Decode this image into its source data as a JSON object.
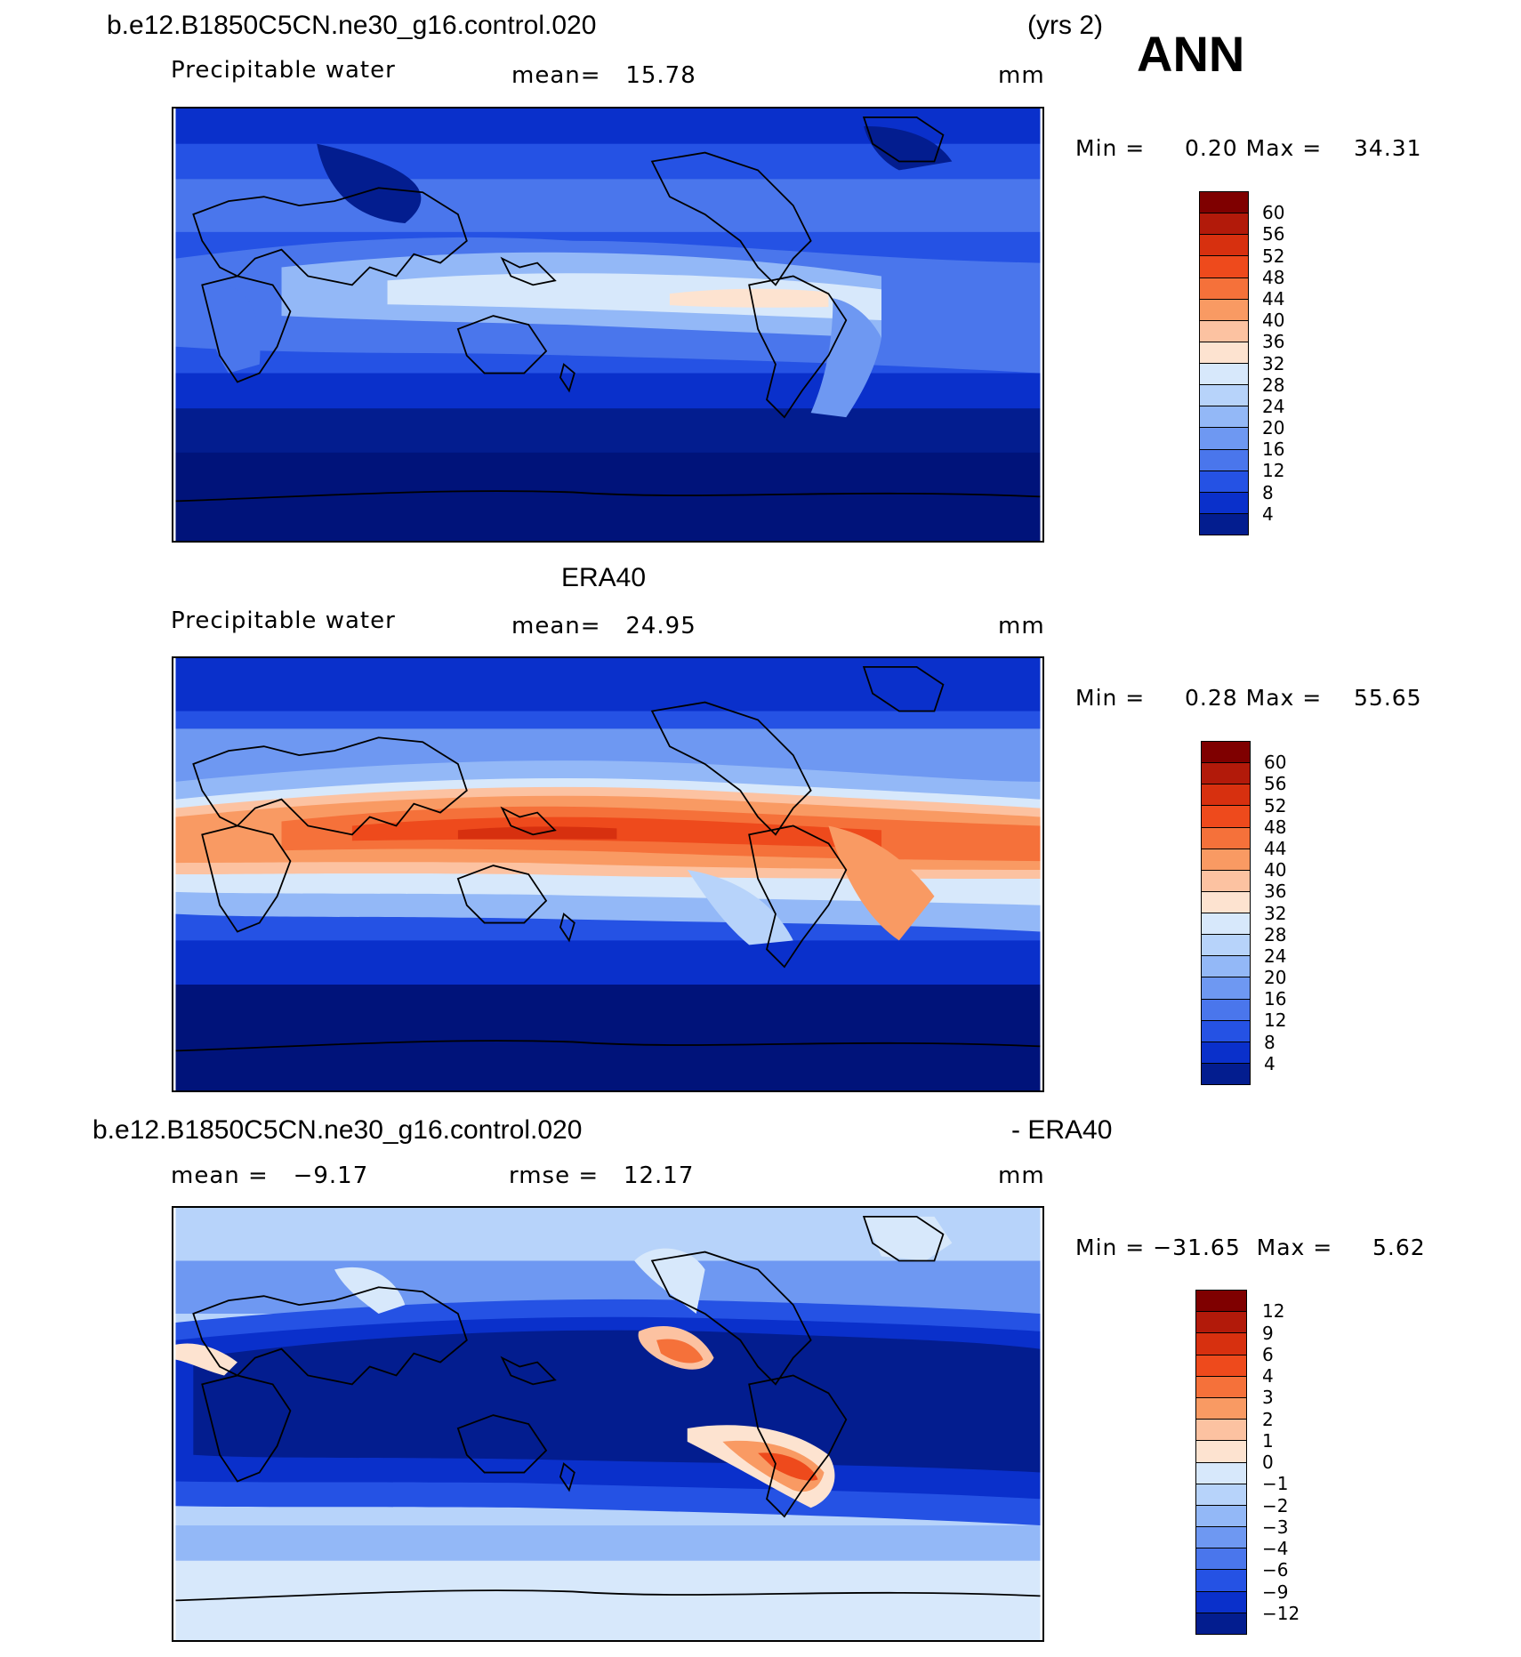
{
  "header": {
    "case_title": "b.e12.B1850C5CN.ne30_g16.control.020",
    "years": "(yrs 2)",
    "season": "ANN"
  },
  "panels": [
    {
      "title": "",
      "variable": "Precipitable water",
      "stat_left": "mean=",
      "stat_left_value": "15.78",
      "stat_mid": "",
      "stat_mid_value": "",
      "units": "mm",
      "min_label": "Min =",
      "min_value": "0.20",
      "max_label": "Max =",
      "max_value": "34.31"
    },
    {
      "title": "ERA40",
      "variable": "Precipitable water",
      "stat_left": "mean=",
      "stat_left_value": "24.95",
      "stat_mid": "",
      "stat_mid_value": "",
      "units": "mm",
      "min_label": "Min =",
      "min_value": "0.28",
      "max_label": "Max =",
      "max_value": "55.65"
    },
    {
      "title_left": "b.e12.B1850C5CN.ne30_g16.control.020",
      "title_right": "- ERA40",
      "stat_left": "mean =",
      "stat_left_value": "−9.17",
      "stat_mid": "rmse =",
      "stat_mid_value": "12.17",
      "units": "mm",
      "min_label": "Min =",
      "min_value": "−31.65",
      "max_label": "Max =",
      "max_value": "5.62"
    }
  ],
  "colorbar_field": {
    "labels": [
      "60",
      "56",
      "52",
      "48",
      "44",
      "40",
      "36",
      "32",
      "28",
      "24",
      "20",
      "16",
      "12",
      "8",
      "4"
    ],
    "colors": [
      "#7f0000",
      "#b21a0a",
      "#d7300f",
      "#ee4a1c",
      "#f5713a",
      "#f99a63",
      "#fcc2a1",
      "#fde3d0",
      "#d7e8fb",
      "#b7d3fa",
      "#93b8f7",
      "#6e98f2",
      "#4a76ec",
      "#2552e4",
      "#0a30cb",
      "#031d8f"
    ]
  },
  "colorbar_diff": {
    "labels": [
      "12",
      "9",
      "6",
      "4",
      "3",
      "2",
      "1",
      "0",
      "−1",
      "−2",
      "−3",
      "−4",
      "−6",
      "−9",
      "−12"
    ],
    "colors": [
      "#7f0000",
      "#b21a0a",
      "#d7300f",
      "#ee4a1c",
      "#f5713a",
      "#f99a63",
      "#fcc2a1",
      "#fde3d0",
      "#d7e8fb",
      "#b7d3fa",
      "#93b8f7",
      "#6e98f2",
      "#4a76ec",
      "#2552e4",
      "#0a30cb",
      "#031d8f"
    ]
  }
}
